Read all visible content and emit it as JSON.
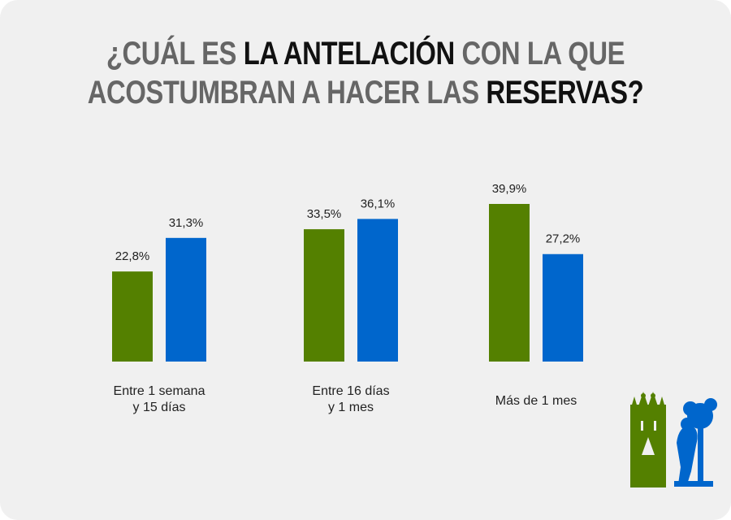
{
  "title": {
    "line1": [
      {
        "text": "¿CUÁL ES ",
        "style": "g"
      },
      {
        "text": "LA ANTELACIÓN",
        "style": "k"
      },
      {
        "text": " CON LA QUE",
        "style": "g"
      }
    ],
    "line2": [
      {
        "text": "ACOSTUMBRAN A HACER LAS ",
        "style": "g"
      },
      {
        "text": "RESERVAS?",
        "style": "k"
      }
    ]
  },
  "chart_data": {
    "type": "bar",
    "title": "¿CUÁL ES LA ANTELACIÓN CON LA QUE ACOSTUMBRAN A HACER LAS RESERVAS?",
    "categories": [
      [
        "Entre 1 semana",
        "y 15 días"
      ],
      [
        "Entre 16 días",
        "y 1 mes"
      ],
      [
        "Más de 1 mes"
      ]
    ],
    "series": [
      {
        "values": [
          22.8,
          33.5,
          39.9
        ],
        "labels": [
          "22,8%",
          "33,5%",
          "39,9%"
        ],
        "color": "#548000"
      },
      {
        "values": [
          31.3,
          36.1,
          27.2
        ],
        "labels": [
          "31,3%",
          "36,1%",
          "27,2%"
        ],
        "color": "#0066cc"
      }
    ],
    "ylim": [
      0,
      100
    ],
    "grid": false,
    "legend": "none"
  },
  "decorations": {
    "left_icon": "sagrada-familia-icon",
    "right_icon": "bear-and-strawberry-tree-icon",
    "left_color": "#548000",
    "right_color": "#0066cc"
  }
}
